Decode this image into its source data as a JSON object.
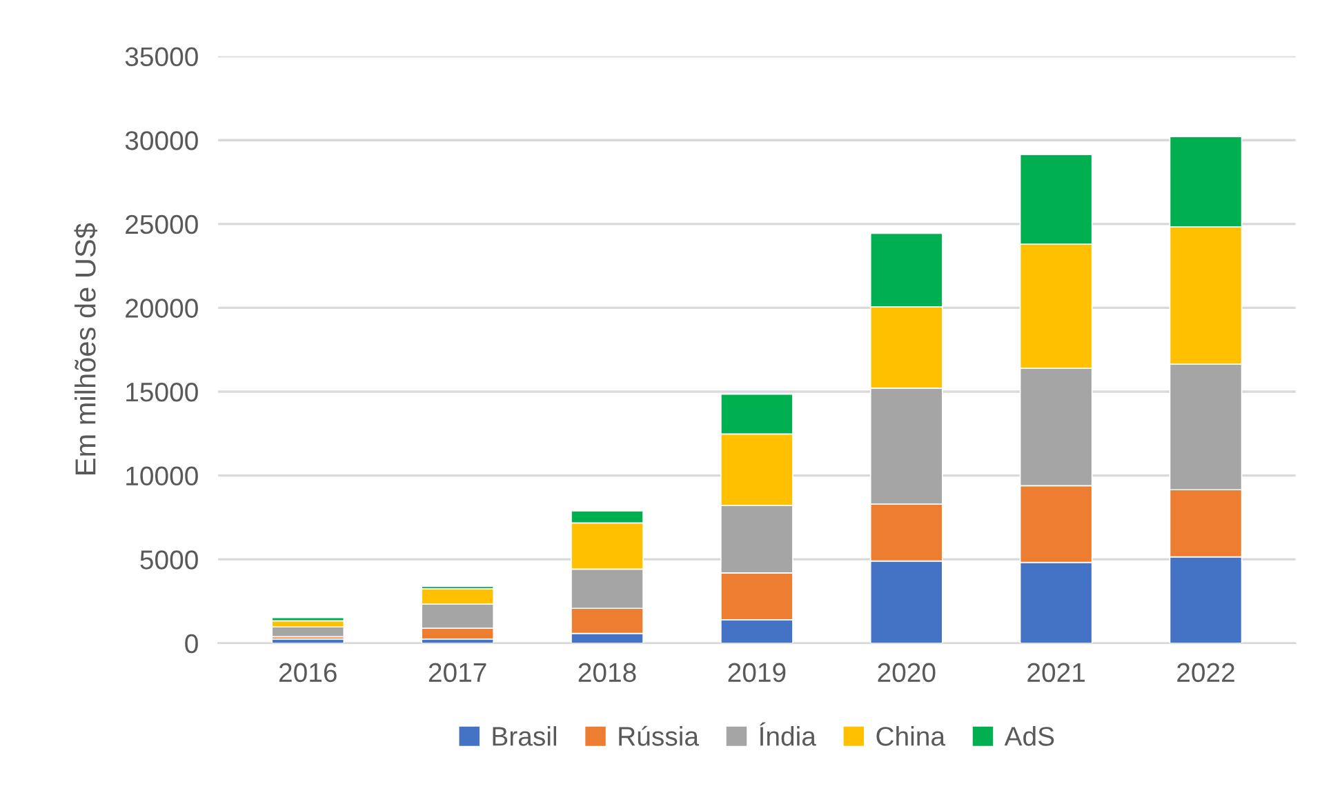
{
  "chart_data": {
    "type": "bar",
    "stacked": true,
    "ylabel": "Em milhões de US$",
    "categories": [
      "2016",
      "2017",
      "2018",
      "2019",
      "2020",
      "2021",
      "2022"
    ],
    "series": [
      {
        "name": "Brasil",
        "color": "#4472c4",
        "values": [
          250,
          250,
          580,
          1400,
          4900,
          4820,
          5150
        ]
      },
      {
        "name": "Rússia",
        "color": "#ed7d31",
        "values": [
          140,
          640,
          1500,
          2790,
          3390,
          4570,
          4000
        ]
      },
      {
        "name": "Índia",
        "color": "#a5a5a5",
        "values": [
          580,
          1440,
          2340,
          4020,
          6920,
          7000,
          7490
        ]
      },
      {
        "name": "China",
        "color": "#ffc000",
        "values": [
          360,
          920,
          2750,
          4270,
          4840,
          7410,
          8180
        ]
      },
      {
        "name": "AdS",
        "color": "#00b050",
        "values": [
          200,
          140,
          720,
          2370,
          4390,
          5340,
          5390
        ]
      }
    ],
    "ylim": [
      0,
      35000
    ],
    "yticks": [
      0,
      5000,
      10000,
      15000,
      20000,
      25000,
      30000,
      35000
    ],
    "grid": "y",
    "legend": "bottom"
  }
}
